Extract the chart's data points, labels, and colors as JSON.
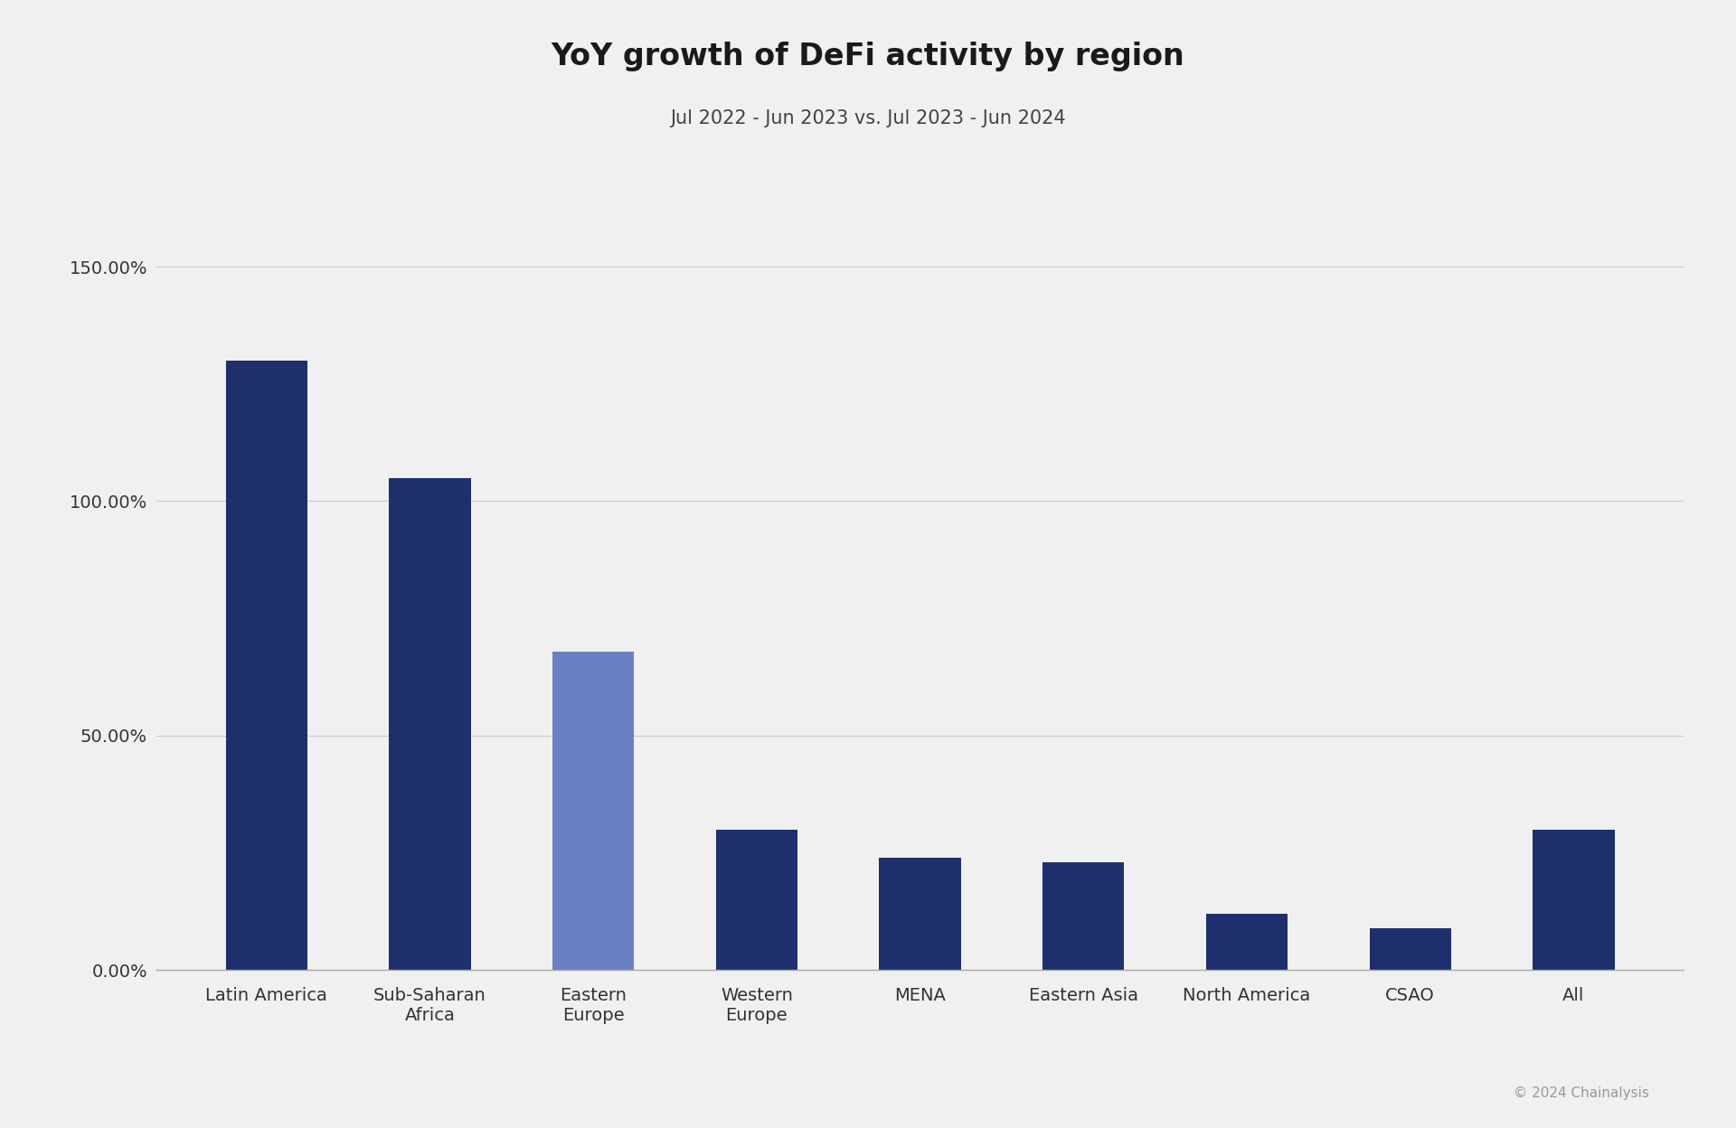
{
  "title": "YoY growth of DeFi activity by region",
  "subtitle": "Jul 2022 - Jun 2023 vs. Jul 2023 - Jun 2024",
  "categories": [
    "Latin America",
    "Sub-Saharan\nAfrica",
    "Eastern\nEurope",
    "Western\nEurope",
    "MENA",
    "Eastern Asia",
    "North America",
    "CSAO",
    "All"
  ],
  "values": [
    1.3,
    1.05,
    0.68,
    0.3,
    0.24,
    0.23,
    0.12,
    0.09,
    0.3
  ],
  "bar_colors": [
    "#1e2f6e",
    "#1e2f6e",
    "#6b7fc4",
    "#1e2f6e",
    "#1e2f6e",
    "#1e2f6e",
    "#1e2f6e",
    "#1e2f6e",
    "#1e2f6e"
  ],
  "background_color": "#f0f0f0",
  "title_fontsize": 24,
  "subtitle_fontsize": 15,
  "tick_fontsize": 14,
  "label_fontsize": 14,
  "yticks": [
    0.0,
    0.5,
    1.0,
    1.5
  ],
  "ytick_labels": [
    "0.00%",
    "50.00%",
    "100.00%",
    "150.00%"
  ],
  "ylim": [
    0,
    1.72
  ],
  "bar_width": 0.5,
  "copyright_text": "© 2024 Chainalysis"
}
